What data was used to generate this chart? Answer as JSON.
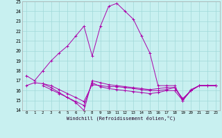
{
  "xlabel": "Windchill (Refroidissement éolien,°C)",
  "bg_color": "#c8f0f0",
  "grid_color": "#a0d8d8",
  "line_color": "#aa00aa",
  "xlim": [
    -0.5,
    23.5
  ],
  "ylim": [
    14,
    25
  ],
  "yticks": [
    14,
    15,
    16,
    17,
    18,
    19,
    20,
    21,
    22,
    23,
    24,
    25
  ],
  "xticks": [
    0,
    1,
    2,
    3,
    4,
    5,
    6,
    7,
    8,
    9,
    10,
    11,
    12,
    13,
    14,
    15,
    16,
    17,
    18,
    19,
    20,
    21,
    22,
    23
  ],
  "series": [
    {
      "x": [
        0,
        1,
        2,
        3,
        4,
        5,
        6,
        7,
        8,
        9,
        10,
        11,
        12,
        13,
        14,
        15,
        16,
        17,
        18,
        19,
        20,
        21,
        22,
        23
      ],
      "y": [
        17.5,
        17.0,
        18.0,
        19.0,
        19.8,
        20.5,
        21.5,
        22.5,
        19.5,
        22.5,
        24.5,
        24.8,
        24.0,
        23.2,
        21.5,
        19.8,
        16.5,
        16.5,
        16.5,
        15.0,
        16.1,
        16.5,
        16.5,
        16.5
      ]
    },
    {
      "x": [
        0,
        1,
        2,
        3,
        4,
        5,
        6,
        7,
        8,
        9,
        10,
        11,
        12,
        13,
        14,
        15,
        16,
        17,
        18,
        19,
        20,
        21,
        22,
        23
      ],
      "y": [
        16.5,
        16.8,
        16.7,
        16.5,
        16.1,
        15.7,
        15.3,
        14.9,
        16.6,
        16.5,
        16.4,
        16.4,
        16.3,
        16.2,
        16.1,
        16.0,
        16.0,
        16.1,
        16.3,
        15.2,
        16.0,
        16.5,
        16.5,
        16.5
      ]
    },
    {
      "x": [
        2,
        3,
        4,
        5,
        6,
        7,
        8,
        9,
        10,
        11,
        12,
        13,
        14,
        15,
        16,
        17,
        18,
        19,
        20,
        21,
        22,
        23
      ],
      "y": [
        16.7,
        16.3,
        15.8,
        15.3,
        14.8,
        14.0,
        17.0,
        16.8,
        16.6,
        16.5,
        16.4,
        16.3,
        16.2,
        16.1,
        16.2,
        16.3,
        16.3,
        15.1,
        16.0,
        16.5,
        16.5,
        16.5
      ]
    },
    {
      "x": [
        2,
        3,
        4,
        5,
        6,
        7,
        8,
        9,
        10,
        11,
        12,
        13,
        14,
        15,
        16,
        17,
        18,
        19,
        20,
        21,
        22,
        23
      ],
      "y": [
        16.5,
        16.1,
        15.7,
        15.3,
        14.9,
        14.5,
        16.8,
        16.4,
        16.2,
        16.1,
        16.0,
        15.9,
        15.8,
        15.7,
        15.8,
        16.0,
        16.0,
        15.0,
        16.0,
        16.5,
        16.5,
        16.5
      ]
    }
  ]
}
